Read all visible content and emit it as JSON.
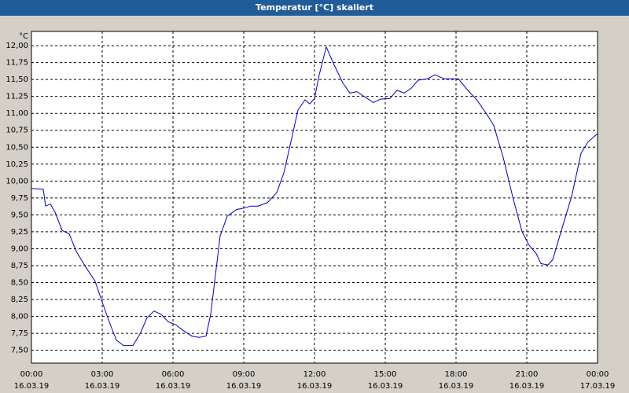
{
  "chart_data": {
    "type": "line",
    "title": "Temperatur [°C] skaliert",
    "y_unit": "°C",
    "xlim": [
      0,
      24
    ],
    "xticks": [
      {
        "value": 0,
        "label": "00:00"
      },
      {
        "value": 3,
        "label": "03:00"
      },
      {
        "value": 6,
        "label": "06:00"
      },
      {
        "value": 9,
        "label": "09:00"
      },
      {
        "value": 12,
        "label": "12:00"
      },
      {
        "value": 15,
        "label": "15:00"
      },
      {
        "value": 18,
        "label": "18:00"
      },
      {
        "value": 21,
        "label": "21:00"
      },
      {
        "value": 24,
        "label": "00:00"
      }
    ],
    "xtick_dates": [
      "16.03.19",
      "16.03.19",
      "16.03.19",
      "16.03.19",
      "16.03.19",
      "16.03.19",
      "16.03.19",
      "16.03.19",
      "17.03.19"
    ],
    "ylim": [
      7.31,
      12.21
    ],
    "yticks": [
      {
        "value": 7.5,
        "label": "7,50"
      },
      {
        "value": 7.75,
        "label": "7,75"
      },
      {
        "value": 8,
        "label": "8,00"
      },
      {
        "value": 8.25,
        "label": "8,25"
      },
      {
        "value": 8.5,
        "label": "8,50"
      },
      {
        "value": 8.75,
        "label": "8,75"
      },
      {
        "value": 9,
        "label": "9,00"
      },
      {
        "value": 9.25,
        "label": "9,25"
      },
      {
        "value": 9.5,
        "label": "9,50"
      },
      {
        "value": 9.75,
        "label": "9,75"
      },
      {
        "value": 10,
        "label": "10,00"
      },
      {
        "value": 10.25,
        "label": "10,25"
      },
      {
        "value": 10.5,
        "label": "10,50"
      },
      {
        "value": 10.75,
        "label": "10,75"
      },
      {
        "value": 11,
        "label": "11,00"
      },
      {
        "value": 11.25,
        "label": "11,25"
      },
      {
        "value": 11.5,
        "label": "11,50"
      },
      {
        "value": 11.75,
        "label": "11,75"
      },
      {
        "value": 12,
        "label": "12,00"
      }
    ],
    "grid": true,
    "series": [
      {
        "color": "#0000c0",
        "x": [
          0,
          0.5,
          0.6,
          0.8,
          1.0,
          1.3,
          1.6,
          1.9,
          2.3,
          2.7,
          3.0,
          3.3,
          3.6,
          3.9,
          4.3,
          4.6,
          4.9,
          5.2,
          5.5,
          5.8,
          6.1,
          6.4,
          6.8,
          7.1,
          7.4,
          7.6,
          7.8,
          8.0,
          8.3,
          8.7,
          9.0,
          9.3,
          9.6,
          10.0,
          10.4,
          10.7,
          11.0,
          11.3,
          11.6,
          11.8,
          12.0,
          12.2,
          12.5,
          12.8,
          13.2,
          13.5,
          13.8,
          14.1,
          14.5,
          14.8,
          15.2,
          15.5,
          15.8,
          16.1,
          16.4,
          16.8,
          17.1,
          17.5,
          17.8,
          18.1,
          18.5,
          18.9,
          19.3,
          19.6,
          20.0,
          20.4,
          20.8,
          21.1,
          21.4,
          21.6,
          21.9,
          22.1,
          22.5,
          22.9,
          23.3,
          23.6,
          24.0
        ],
        "values": [
          9.89,
          9.88,
          9.63,
          9.66,
          9.54,
          9.27,
          9.22,
          8.96,
          8.73,
          8.52,
          8.21,
          7.92,
          7.65,
          7.57,
          7.57,
          7.74,
          7.98,
          8.08,
          8.03,
          7.92,
          7.88,
          7.8,
          7.71,
          7.69,
          7.71,
          8.03,
          8.61,
          9.19,
          9.48,
          9.58,
          9.6,
          9.63,
          9.63,
          9.68,
          9.83,
          10.12,
          10.58,
          11.05,
          11.2,
          11.14,
          11.22,
          11.57,
          11.98,
          11.74,
          11.45,
          11.3,
          11.32,
          11.25,
          11.16,
          11.21,
          11.22,
          11.34,
          11.3,
          11.37,
          11.49,
          11.51,
          11.57,
          11.51,
          11.51,
          11.51,
          11.34,
          11.19,
          10.99,
          10.82,
          10.35,
          9.77,
          9.25,
          9.05,
          8.93,
          8.78,
          8.76,
          8.84,
          9.31,
          9.77,
          10.41,
          10.58,
          10.7
        ]
      }
    ]
  }
}
